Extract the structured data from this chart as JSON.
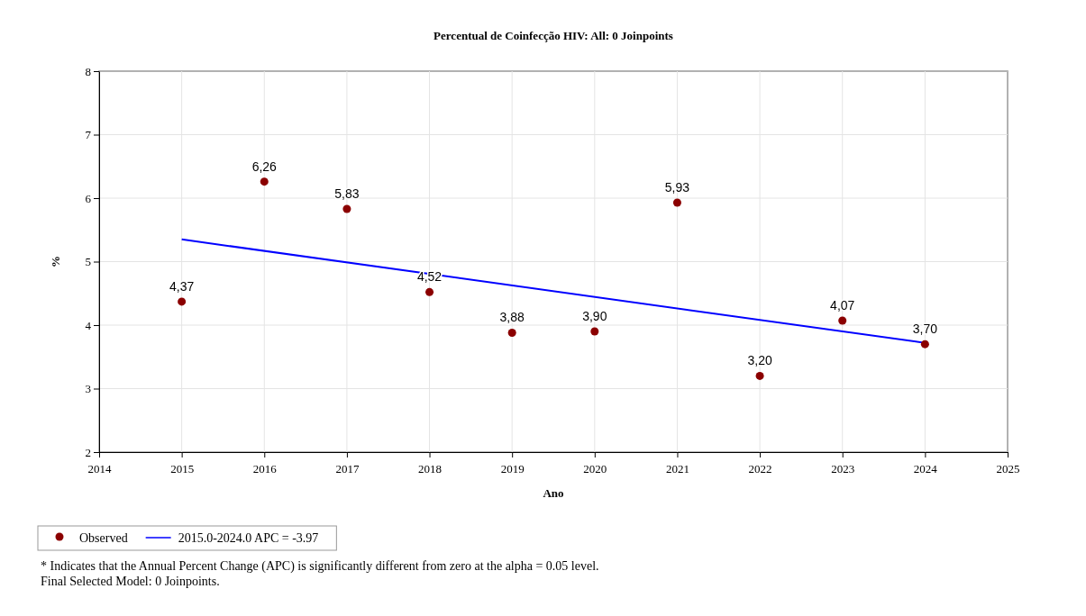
{
  "chart_data": {
    "type": "scatter",
    "title": "Percentual de Coinfecção HIV: All: 0 Joinpoints",
    "xlabel": "Ano",
    "ylabel": "%",
    "x": [
      2015,
      2016,
      2017,
      2018,
      2019,
      2020,
      2021,
      2022,
      2023,
      2024
    ],
    "series": [
      {
        "name": "Observed",
        "color": "#8b0000",
        "marker": "circle",
        "values": [
          4.37,
          6.26,
          5.83,
          4.52,
          3.88,
          3.9,
          5.93,
          3.2,
          4.07,
          3.7
        ],
        "value_labels": [
          "4,37",
          "6,26",
          "5,83",
          "4,52",
          "3,88",
          "3,90",
          "5,93",
          "3,20",
          "4,07",
          "3,70"
        ]
      },
      {
        "type": "line",
        "name": "2015.0-2024.0 APC  = -3.97",
        "color": "#0000ff",
        "line_style": "solid",
        "marker": "none",
        "x": [
          2015,
          2024
        ],
        "values": [
          5.35,
          3.72
        ]
      }
    ],
    "xlim": [
      2014,
      2025
    ],
    "xticks": [
      2014,
      2015,
      2016,
      2017,
      2018,
      2019,
      2020,
      2021,
      2022,
      2023,
      2024,
      2025
    ],
    "ylim": [
      2,
      8
    ],
    "yticks": [
      2,
      3,
      4,
      5,
      6,
      7,
      8
    ],
    "grid": true,
    "legend": "bottom",
    "annotations": [
      "* Indicates that the Annual Percent Change (APC) is significantly different from zero at the alpha = 0.05 level.",
      "Final Selected Model: 0 Joinpoints."
    ]
  }
}
